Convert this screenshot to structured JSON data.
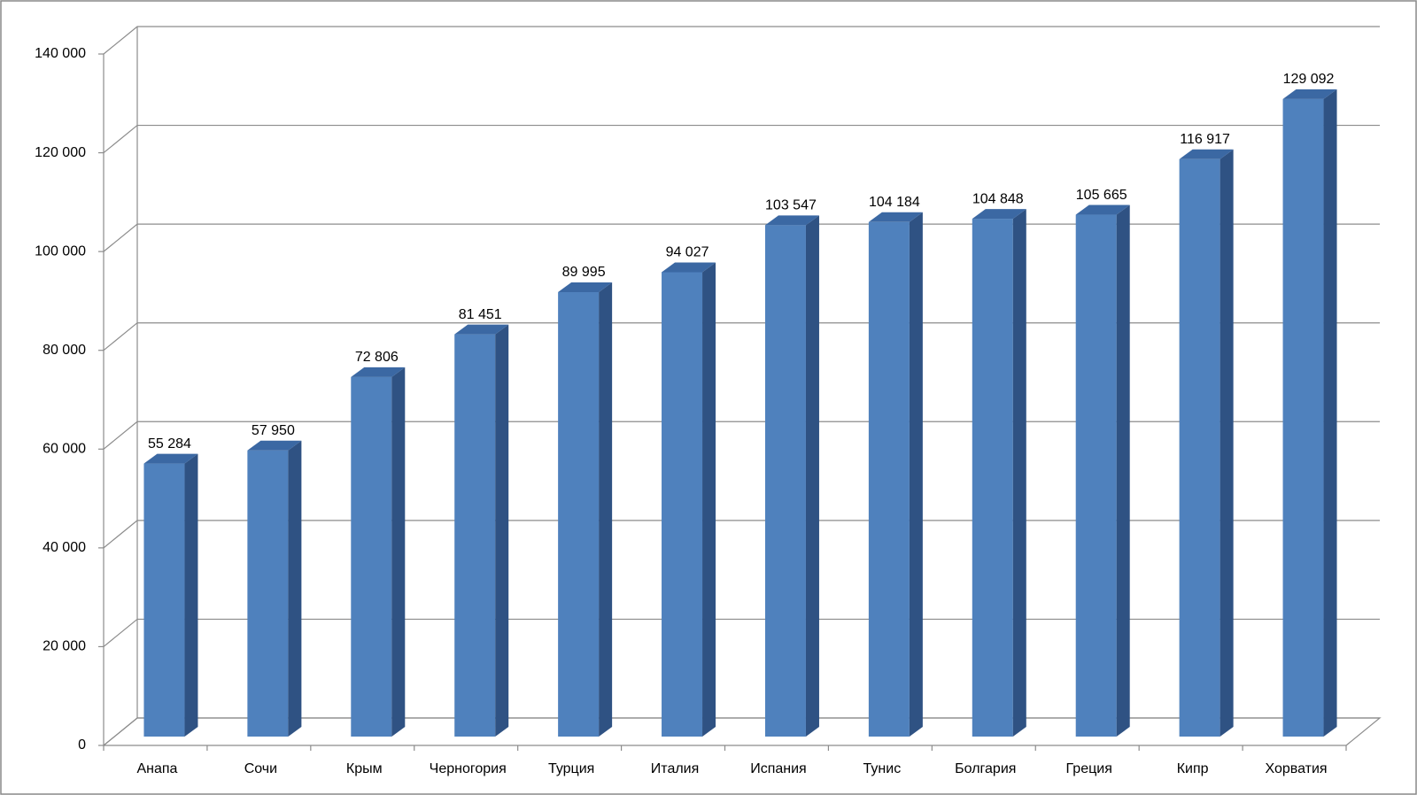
{
  "chart_data": {
    "type": "bar3d",
    "categories": [
      "Анапа",
      "Сочи",
      "Крым",
      "Черногория",
      "Турция",
      "Италия",
      "Испания",
      "Тунис",
      "Болгария",
      "Греция",
      "Кипр",
      "Хорватия"
    ],
    "values": [
      55284,
      57950,
      72806,
      81451,
      89995,
      94027,
      103547,
      104184,
      104848,
      105665,
      116917,
      129092
    ],
    "value_labels": [
      "55 284",
      "57 950",
      "72 806",
      "81 451",
      "89 995",
      "94 027",
      "103 547",
      "104 184",
      "104 848",
      "105 665",
      "116 917",
      "129 092"
    ],
    "color": "#4f81bd",
    "ylim": [
      0,
      140000
    ],
    "yticks": [
      0,
      {
        "value": 20000,
        "label": "20 000"
      },
      {
        "value": 40000,
        "label": "40 000"
      },
      {
        "value": 60000,
        "label": "60 000"
      },
      {
        "value": 80000,
        "label": "80 000"
      },
      {
        "value": 100000,
        "label": "100 000"
      },
      {
        "value": 120000,
        "label": "120 000"
      },
      {
        "value": 140000,
        "label": "140 000"
      }
    ],
    "grid": true
  }
}
